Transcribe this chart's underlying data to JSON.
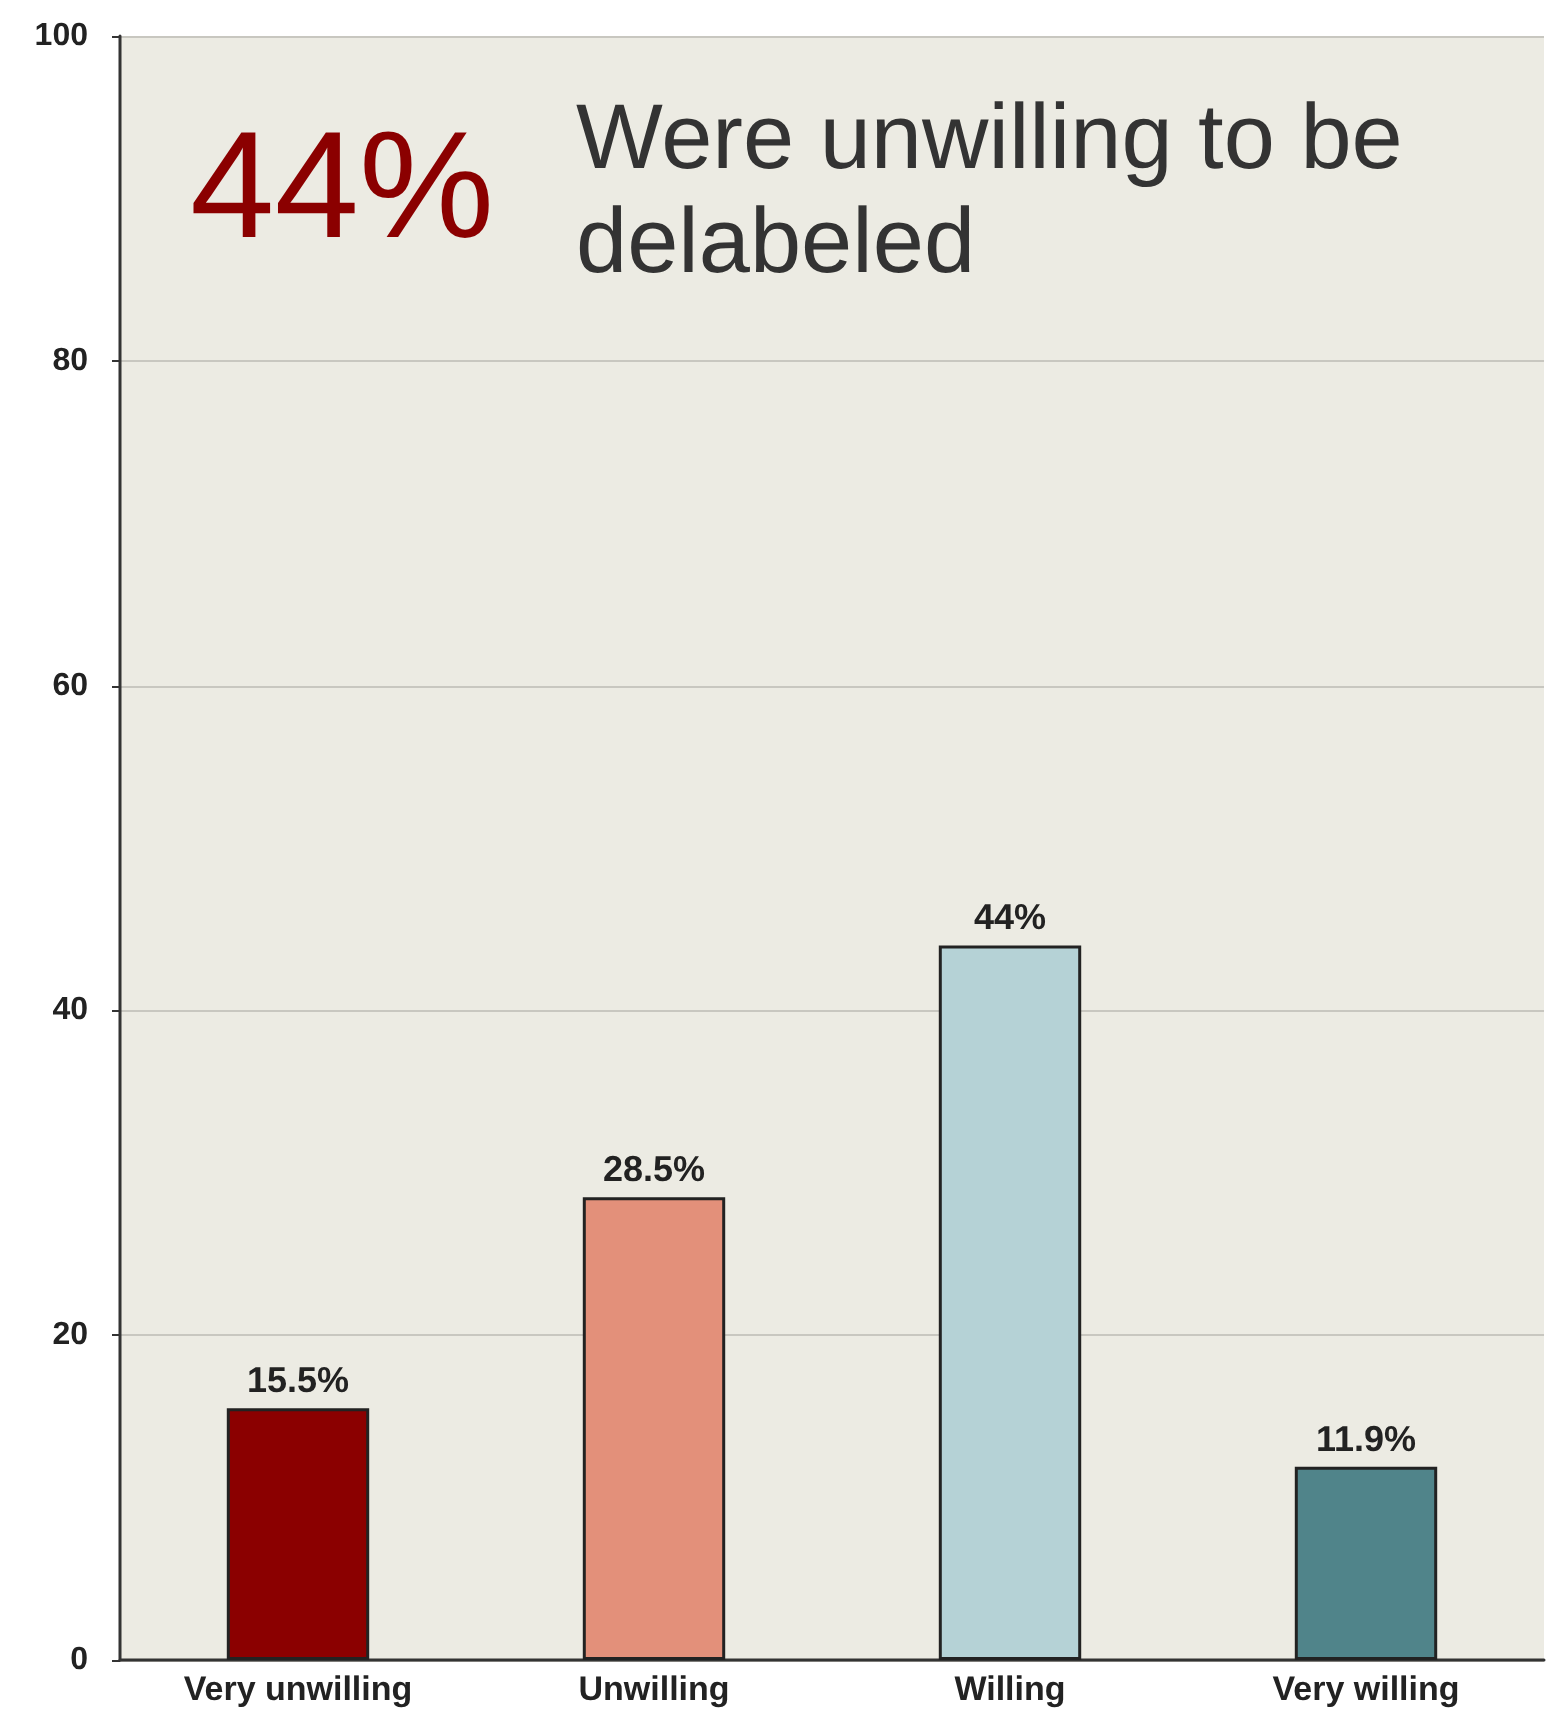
{
  "chart_data": {
    "type": "bar",
    "categories": [
      "Very unwilling",
      "Unwilling",
      "Willing",
      "Very willing"
    ],
    "values": [
      15.5,
      28.5,
      44,
      11.9
    ],
    "colors": [
      "#8b0000",
      "#e3907a",
      "#b5d2d6",
      "#50848a"
    ],
    "value_labels": [
      "15.5%",
      "28.5%",
      "44%",
      "11.9%"
    ],
    "ylim": [
      0,
      100
    ],
    "yticks": [
      0,
      20,
      40,
      60,
      80,
      100
    ],
    "grid": "y",
    "annotations": [
      "44%",
      "Were unwilling to be delabeled"
    ]
  }
}
